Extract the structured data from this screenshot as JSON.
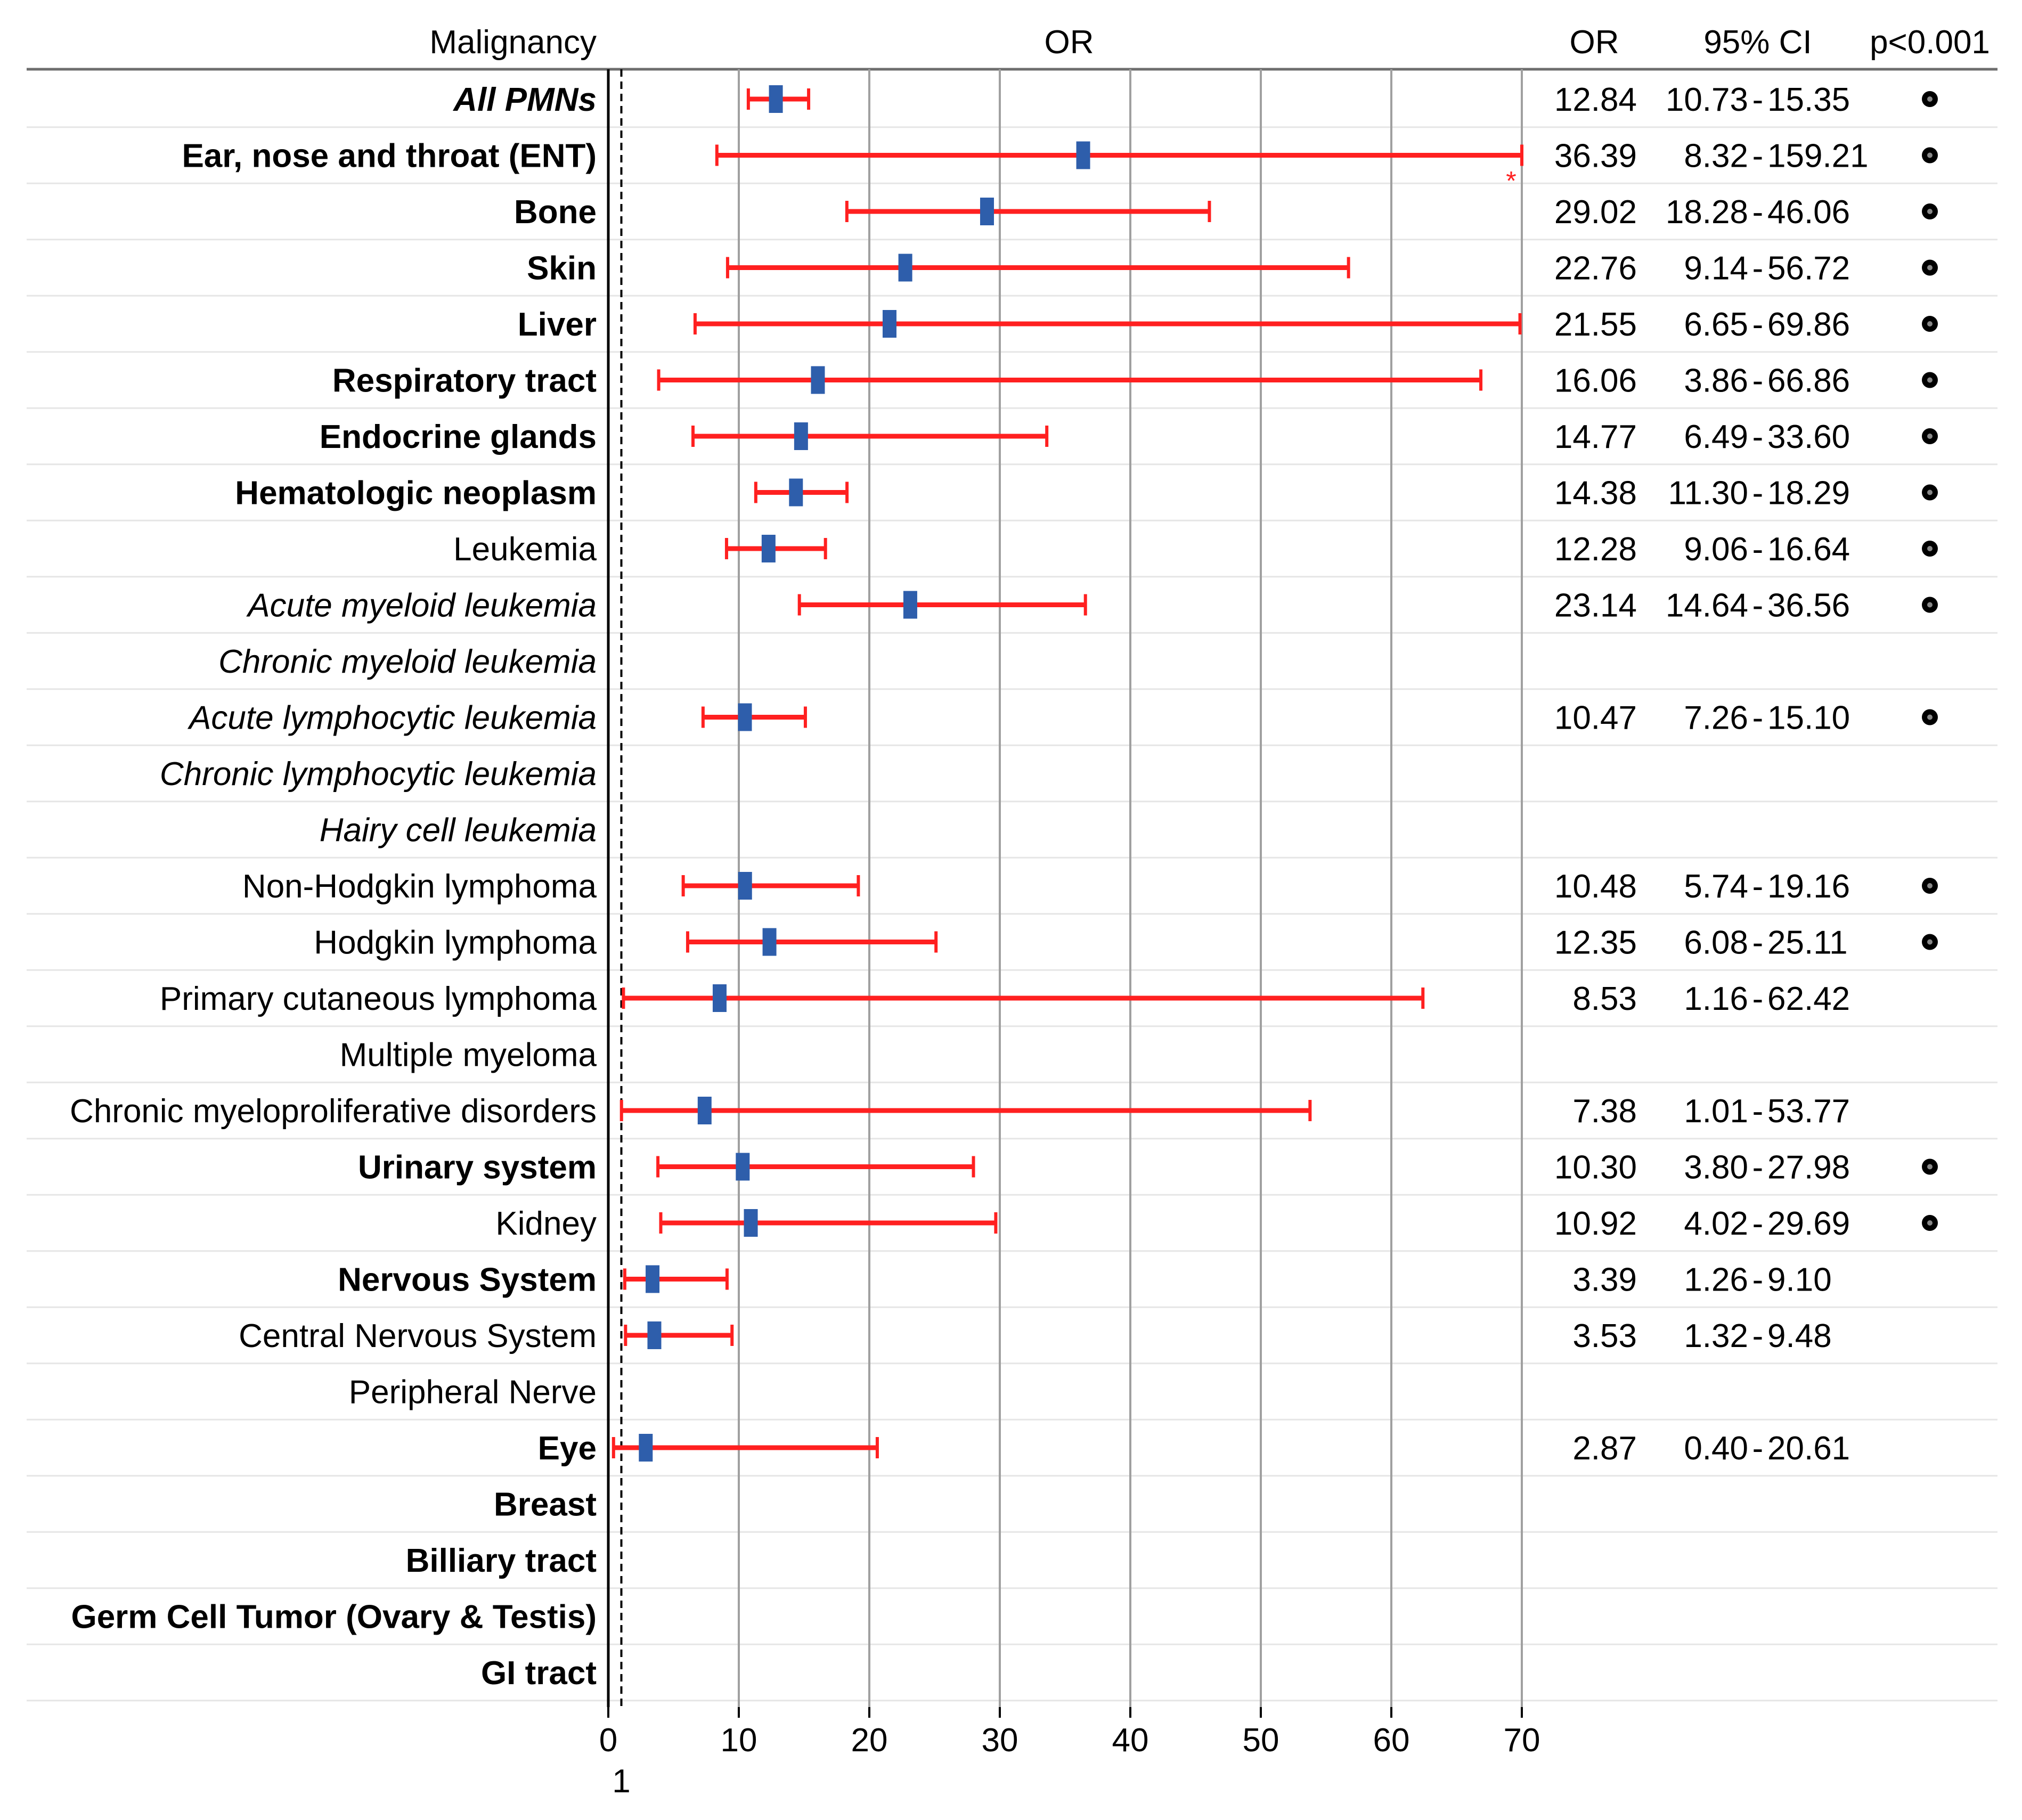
{
  "chart_data": {
    "type": "forest",
    "headers": {
      "label": "Malignancy",
      "axis": "OR",
      "or": "OR",
      "ci": "95% CI",
      "p": "p<0.001"
    },
    "xlim": [
      0,
      70
    ],
    "ticks": [
      "0",
      "10",
      "20",
      "30",
      "40",
      "50",
      "60",
      "70"
    ],
    "reference_line": {
      "value": 1,
      "label": "1"
    },
    "truncation_marker": "*",
    "colors": {
      "ci_line": "#ff2020",
      "point": "#2e5eab",
      "grid": "#a0a0a0",
      "row_line": "#e6e6e6"
    },
    "rows": [
      {
        "label": "All PMNs",
        "bold": true,
        "italic": true,
        "or": 12.84,
        "lo": 10.73,
        "hi": 15.35,
        "or_text": "12.84",
        "ci_lo_text": "10.73",
        "ci_hi_text": "15.35",
        "sig": true,
        "truncated": false
      },
      {
        "label": "Ear, nose and throat (ENT)",
        "bold": true,
        "italic": false,
        "or": 36.39,
        "lo": 8.32,
        "hi": 159.21,
        "or_text": "36.39",
        "ci_lo_text": "8.32",
        "ci_hi_text": "159.21",
        "sig": true,
        "truncated": true
      },
      {
        "label": "Bone",
        "bold": true,
        "italic": false,
        "or": 29.02,
        "lo": 18.28,
        "hi": 46.06,
        "or_text": "29.02",
        "ci_lo_text": "18.28",
        "ci_hi_text": "46.06",
        "sig": true,
        "truncated": false
      },
      {
        "label": "Skin",
        "bold": true,
        "italic": false,
        "or": 22.76,
        "lo": 9.14,
        "hi": 56.72,
        "or_text": "22.76",
        "ci_lo_text": "9.14",
        "ci_hi_text": "56.72",
        "sig": true,
        "truncated": false
      },
      {
        "label": "Liver",
        "bold": true,
        "italic": false,
        "or": 21.55,
        "lo": 6.65,
        "hi": 69.86,
        "or_text": "21.55",
        "ci_lo_text": "6.65",
        "ci_hi_text": "69.86",
        "sig": true,
        "truncated": false
      },
      {
        "label": "Respiratory tract",
        "bold": true,
        "italic": false,
        "or": 16.06,
        "lo": 3.86,
        "hi": 66.86,
        "or_text": "16.06",
        "ci_lo_text": "3.86",
        "ci_hi_text": "66.86",
        "sig": true,
        "truncated": false
      },
      {
        "label": "Endocrine glands",
        "bold": true,
        "italic": false,
        "or": 14.77,
        "lo": 6.49,
        "hi": 33.6,
        "or_text": "14.77",
        "ci_lo_text": "6.49",
        "ci_hi_text": "33.60",
        "sig": true,
        "truncated": false
      },
      {
        "label": "Hematologic neoplasm",
        "bold": true,
        "italic": false,
        "or": 14.38,
        "lo": 11.3,
        "hi": 18.29,
        "or_text": "14.38",
        "ci_lo_text": "11.30",
        "ci_hi_text": "18.29",
        "sig": true,
        "truncated": false
      },
      {
        "label": "Leukemia",
        "bold": false,
        "italic": false,
        "or": 12.28,
        "lo": 9.06,
        "hi": 16.64,
        "or_text": "12.28",
        "ci_lo_text": "9.06",
        "ci_hi_text": "16.64",
        "sig": true,
        "truncated": false
      },
      {
        "label": "Acute myeloid leukemia",
        "bold": false,
        "italic": true,
        "or": 23.14,
        "lo": 14.64,
        "hi": 36.56,
        "or_text": "23.14",
        "ci_lo_text": "14.64",
        "ci_hi_text": "36.56",
        "sig": true,
        "truncated": false
      },
      {
        "label": "Chronic myeloid leukemia",
        "bold": false,
        "italic": true,
        "or": null,
        "lo": null,
        "hi": null,
        "or_text": "",
        "ci_lo_text": "",
        "ci_hi_text": "",
        "sig": false,
        "truncated": false
      },
      {
        "label": "Acute lymphocytic leukemia",
        "bold": false,
        "italic": true,
        "or": 10.47,
        "lo": 7.26,
        "hi": 15.1,
        "or_text": "10.47",
        "ci_lo_text": "7.26",
        "ci_hi_text": "15.10",
        "sig": true,
        "truncated": false
      },
      {
        "label": "Chronic lymphocytic leukemia",
        "bold": false,
        "italic": true,
        "or": null,
        "lo": null,
        "hi": null,
        "or_text": "",
        "ci_lo_text": "",
        "ci_hi_text": "",
        "sig": false,
        "truncated": false
      },
      {
        "label": "Hairy cell leukemia",
        "bold": false,
        "italic": true,
        "or": null,
        "lo": null,
        "hi": null,
        "or_text": "",
        "ci_lo_text": "",
        "ci_hi_text": "",
        "sig": false,
        "truncated": false
      },
      {
        "label": "Non-Hodgkin lymphoma",
        "bold": false,
        "italic": false,
        "or": 10.48,
        "lo": 5.74,
        "hi": 19.16,
        "or_text": "10.48",
        "ci_lo_text": "5.74",
        "ci_hi_text": "19.16",
        "sig": true,
        "truncated": false
      },
      {
        "label": "Hodgkin lymphoma",
        "bold": false,
        "italic": false,
        "or": 12.35,
        "lo": 6.08,
        "hi": 25.11,
        "or_text": "12.35",
        "ci_lo_text": "6.08",
        "ci_hi_text": "25.11",
        "sig": true,
        "truncated": false
      },
      {
        "label": "Primary cutaneous lymphoma",
        "bold": false,
        "italic": false,
        "or": 8.53,
        "lo": 1.16,
        "hi": 62.42,
        "or_text": "8.53",
        "ci_lo_text": "1.16",
        "ci_hi_text": "62.42",
        "sig": false,
        "truncated": false
      },
      {
        "label": "Multiple myeloma",
        "bold": false,
        "italic": false,
        "or": null,
        "lo": null,
        "hi": null,
        "or_text": "",
        "ci_lo_text": "",
        "ci_hi_text": "",
        "sig": false,
        "truncated": false
      },
      {
        "label": "Chronic myeloproliferative disorders",
        "bold": false,
        "italic": false,
        "or": 7.38,
        "lo": 1.01,
        "hi": 53.77,
        "or_text": "7.38",
        "ci_lo_text": "1.01",
        "ci_hi_text": "53.77",
        "sig": false,
        "truncated": false
      },
      {
        "label": "Urinary system",
        "bold": true,
        "italic": false,
        "or": 10.3,
        "lo": 3.8,
        "hi": 27.98,
        "or_text": "10.30",
        "ci_lo_text": "3.80",
        "ci_hi_text": "27.98",
        "sig": true,
        "truncated": false
      },
      {
        "label": "Kidney",
        "bold": false,
        "italic": false,
        "or": 10.92,
        "lo": 4.02,
        "hi": 29.69,
        "or_text": "10.92",
        "ci_lo_text": "4.02",
        "ci_hi_text": "29.69",
        "sig": true,
        "truncated": false
      },
      {
        "label": "Nervous System",
        "bold": true,
        "italic": false,
        "or": 3.39,
        "lo": 1.26,
        "hi": 9.1,
        "or_text": "3.39",
        "ci_lo_text": "1.26",
        "ci_hi_text": "9.10",
        "sig": false,
        "truncated": false
      },
      {
        "label": "Central Nervous System",
        "bold": false,
        "italic": false,
        "or": 3.53,
        "lo": 1.32,
        "hi": 9.48,
        "or_text": "3.53",
        "ci_lo_text": "1.32",
        "ci_hi_text": "9.48",
        "sig": false,
        "truncated": false
      },
      {
        "label": "Peripheral Nerve",
        "bold": false,
        "italic": false,
        "or": null,
        "lo": null,
        "hi": null,
        "or_text": "",
        "ci_lo_text": "",
        "ci_hi_text": "",
        "sig": false,
        "truncated": false
      },
      {
        "label": "Eye",
        "bold": true,
        "italic": false,
        "or": 2.87,
        "lo": 0.4,
        "hi": 20.61,
        "or_text": "2.87",
        "ci_lo_text": "0.40",
        "ci_hi_text": "20.61",
        "sig": false,
        "truncated": false
      },
      {
        "label": "Breast",
        "bold": true,
        "italic": false,
        "or": null,
        "lo": null,
        "hi": null,
        "or_text": "",
        "ci_lo_text": "",
        "ci_hi_text": "",
        "sig": false,
        "truncated": false
      },
      {
        "label": "Billiary tract",
        "bold": true,
        "italic": false,
        "or": null,
        "lo": null,
        "hi": null,
        "or_text": "",
        "ci_lo_text": "",
        "ci_hi_text": "",
        "sig": false,
        "truncated": false
      },
      {
        "label": "Germ Cell Tumor (Ovary & Testis)",
        "bold": true,
        "italic": false,
        "or": null,
        "lo": null,
        "hi": null,
        "or_text": "",
        "ci_lo_text": "",
        "ci_hi_text": "",
        "sig": false,
        "truncated": false
      },
      {
        "label": "GI tract",
        "bold": true,
        "italic": false,
        "or": null,
        "lo": null,
        "hi": null,
        "or_text": "",
        "ci_lo_text": "",
        "ci_hi_text": "",
        "sig": false,
        "truncated": false
      }
    ]
  }
}
